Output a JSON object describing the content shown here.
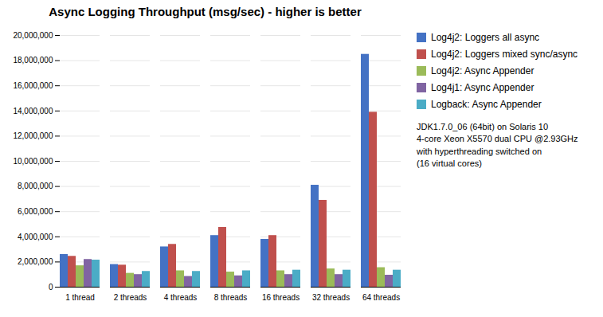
{
  "chart_data": {
    "type": "bar",
    "title": "Async Logging Throughput (msg/sec) - higher is better",
    "categories": [
      "1 thread",
      "2 threads",
      "4 threads",
      "8 threads",
      "16 threads",
      "32 threads",
      "64 threads"
    ],
    "series": [
      {
        "name": "Log4j2: Loggers all async",
        "color": "#4472C4",
        "values": [
          2600000,
          1800000,
          3200000,
          4100000,
          3800000,
          8100000,
          18500000
        ]
      },
      {
        "name": "Log4j2: Loggers mixed sync/async",
        "color": "#C0504D",
        "values": [
          2450000,
          1750000,
          3400000,
          4750000,
          4100000,
          6900000,
          13900000
        ]
      },
      {
        "name": "Log4j2: Async Appender",
        "color": "#9BBB59",
        "values": [
          1700000,
          1100000,
          1300000,
          1200000,
          1300000,
          1450000,
          1550000
        ]
      },
      {
        "name": "Log4j1: Async Appender",
        "color": "#8064A2",
        "values": [
          2200000,
          1000000,
          850000,
          900000,
          1000000,
          1000000,
          950000
        ]
      },
      {
        "name": "Logback: Async Appender",
        "color": "#4BACC6",
        "values": [
          2150000,
          1250000,
          1250000,
          1300000,
          1350000,
          1350000,
          1350000
        ]
      }
    ],
    "ylim": [
      0,
      20000000
    ],
    "yticks": [
      0,
      {
        "value": 2000000,
        "label": "2,000,000"
      },
      {
        "value": 4000000,
        "label": "4,000,000"
      },
      {
        "value": 6000000,
        "label": "6,000,000"
      },
      {
        "value": 8000000,
        "label": "8,000,000"
      },
      {
        "value": 10000000,
        "label": "10,000,000"
      },
      {
        "value": 12000000,
        "label": "12,000,000"
      },
      {
        "value": 14000000,
        "label": "14,000,000"
      },
      {
        "value": 16000000,
        "label": "16,000,000"
      },
      {
        "value": 18000000,
        "label": "18,000,000"
      },
      {
        "value": 20000000,
        "label": "20,000,000"
      }
    ],
    "grid": true,
    "legend": "right",
    "annotation": "JDK1.7.0_06 (64bit) on Solaris 10\n4-core Xeon X5570 dual CPU @2.93GHz\nwith hyperthreading switched on\n(16 virtual cores)"
  }
}
